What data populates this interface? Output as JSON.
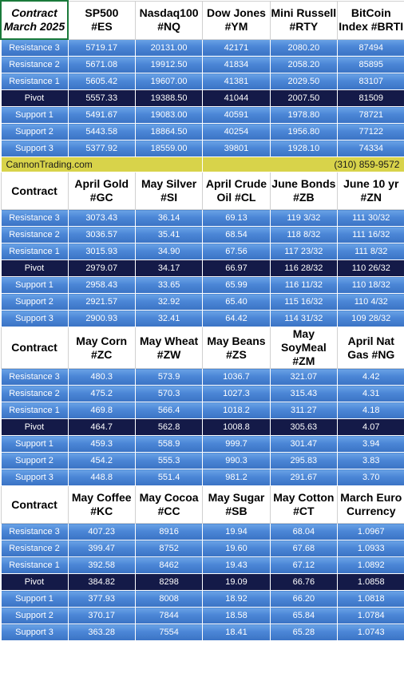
{
  "banner": {
    "site": "CannonTrading.com",
    "phone": "(310) 859-9572"
  },
  "sections": [
    {
      "corner": [
        "Contract",
        "March 2025"
      ],
      "headers": [
        [
          "SP500",
          "#ES"
        ],
        [
          "Nasdaq100",
          "#NQ"
        ],
        [
          "Dow Jones",
          "#YM"
        ],
        [
          "Mini Russell",
          "#RTY"
        ],
        [
          "BitCoin",
          "Index #BRTI"
        ]
      ],
      "rows": [
        {
          "label": "Resistance 3",
          "values": [
            "5719.17",
            "20131.00",
            "42171",
            "2080.20",
            "87494"
          ]
        },
        {
          "label": "Resistance 2",
          "values": [
            "5671.08",
            "19912.50",
            "41834",
            "2058.20",
            "85895"
          ]
        },
        {
          "label": "Resistance 1",
          "values": [
            "5605.42",
            "19607.00",
            "41381",
            "2029.50",
            "83107"
          ]
        },
        {
          "label": "Pivot",
          "values": [
            "5557.33",
            "19388.50",
            "41044",
            "2007.50",
            "81509"
          ]
        },
        {
          "label": "Support 1",
          "values": [
            "5491.67",
            "19083.00",
            "40591",
            "1978.80",
            "78721"
          ]
        },
        {
          "label": "Support 2",
          "values": [
            "5443.58",
            "18864.50",
            "40254",
            "1956.80",
            "77122"
          ]
        },
        {
          "label": "Support 3",
          "values": [
            "5377.92",
            "18559.00",
            "39801",
            "1928.10",
            "74334"
          ]
        }
      ]
    },
    {
      "corner": [
        "Contract"
      ],
      "headers": [
        [
          "April Gold",
          "#GC"
        ],
        [
          "May Silver",
          "#SI"
        ],
        [
          "April Crude",
          "Oil #CL"
        ],
        [
          "June Bonds",
          "#ZB"
        ],
        [
          "June 10 yr",
          "#ZN"
        ]
      ],
      "rows": [
        {
          "label": "Resistance 3",
          "values": [
            "3073.43",
            "36.14",
            "69.13",
            "119  3/32",
            "111 30/32"
          ]
        },
        {
          "label": "Resistance 2",
          "values": [
            "3036.57",
            "35.41",
            "68.54",
            "118  8/32",
            "111 16/32"
          ]
        },
        {
          "label": "Resistance 1",
          "values": [
            "3015.93",
            "34.90",
            "67.56",
            "117 23/32",
            "111  8/32"
          ]
        },
        {
          "label": "Pivot",
          "values": [
            "2979.07",
            "34.17",
            "66.97",
            "116 28/32",
            "110 26/32"
          ]
        },
        {
          "label": "Support 1",
          "values": [
            "2958.43",
            "33.65",
            "65.99",
            "116 11/32",
            "110 18/32"
          ]
        },
        {
          "label": "Support 2",
          "values": [
            "2921.57",
            "32.92",
            "65.40",
            "115 16/32",
            "110  4/32"
          ]
        },
        {
          "label": "Support 3",
          "values": [
            "2900.93",
            "32.41",
            "64.42",
            "114 31/32",
            "109 28/32"
          ]
        }
      ]
    },
    {
      "corner": [
        "Contract"
      ],
      "headers": [
        [
          "May Corn",
          "#ZC"
        ],
        [
          "May  Wheat",
          "#ZW"
        ],
        [
          "May Beans",
          "#ZS"
        ],
        [
          "May",
          "SoyMeal",
          "#ZM"
        ],
        [
          "April Nat",
          "Gas #NG"
        ]
      ],
      "rows": [
        {
          "label": "Resistance 3",
          "values": [
            "480.3",
            "573.9",
            "1036.7",
            "321.07",
            "4.42"
          ]
        },
        {
          "label": "Resistance 2",
          "values": [
            "475.2",
            "570.3",
            "1027.3",
            "315.43",
            "4.31"
          ]
        },
        {
          "label": "Resistance 1",
          "values": [
            "469.8",
            "566.4",
            "1018.2",
            "311.27",
            "4.18"
          ]
        },
        {
          "label": "Pivot",
          "values": [
            "464.7",
            "562.8",
            "1008.8",
            "305.63",
            "4.07"
          ]
        },
        {
          "label": "Support 1",
          "values": [
            "459.3",
            "558.9",
            "999.7",
            "301.47",
            "3.94"
          ]
        },
        {
          "label": "Support 2",
          "values": [
            "454.2",
            "555.3",
            "990.3",
            "295.83",
            "3.83"
          ]
        },
        {
          "label": "Support 3",
          "values": [
            "448.8",
            "551.4",
            "981.2",
            "291.67",
            "3.70"
          ]
        }
      ]
    },
    {
      "corner": [
        "Contract"
      ],
      "headers": [
        [
          "May Coffee",
          "#KC"
        ],
        [
          "May Cocoa",
          "#CC"
        ],
        [
          "May Sugar",
          "#SB"
        ],
        [
          "May Cotton",
          "#CT"
        ],
        [
          "March Euro",
          "Currency"
        ]
      ],
      "rows": [
        {
          "label": "Resistance 3",
          "values": [
            "407.23",
            "8916",
            "19.94",
            "68.04",
            "1.0967"
          ]
        },
        {
          "label": "Resistance 2",
          "values": [
            "399.47",
            "8752",
            "19.60",
            "67.68",
            "1.0933"
          ]
        },
        {
          "label": "Resistance 1",
          "values": [
            "392.58",
            "8462",
            "19.43",
            "67.12",
            "1.0892"
          ]
        },
        {
          "label": "Pivot",
          "values": [
            "384.82",
            "8298",
            "19.09",
            "66.76",
            "1.0858"
          ]
        },
        {
          "label": "Support 1",
          "values": [
            "377.93",
            "8008",
            "18.92",
            "66.20",
            "1.0818"
          ]
        },
        {
          "label": "Support 2",
          "values": [
            "370.17",
            "7844",
            "18.58",
            "65.84",
            "1.0784"
          ]
        },
        {
          "label": "Support 3",
          "values": [
            "363.28",
            "7554",
            "18.41",
            "65.28",
            "1.0743"
          ]
        }
      ]
    }
  ]
}
